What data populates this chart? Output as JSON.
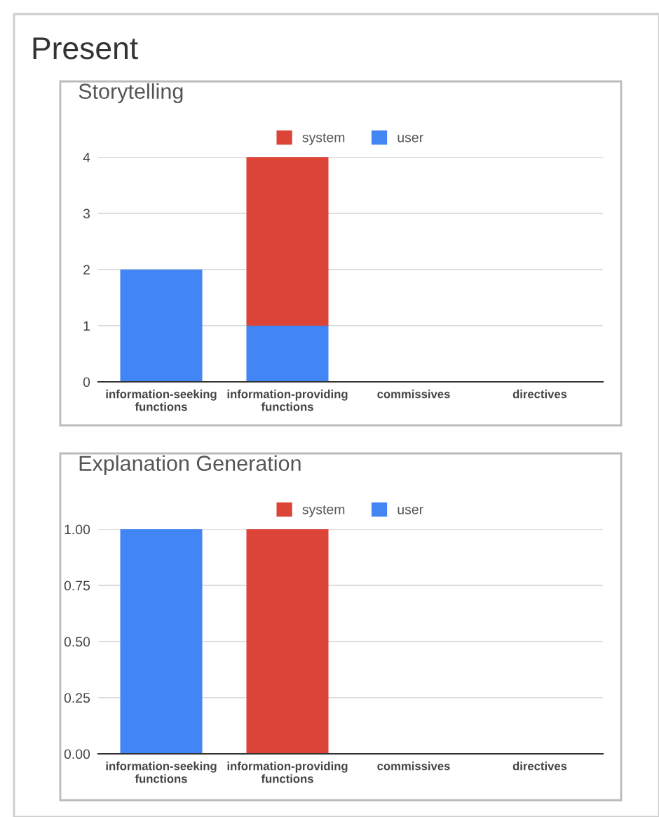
{
  "chart_data": [
    {
      "type": "bar",
      "title": "Storytelling",
      "annotations": [
        "Present"
      ],
      "categories": [
        "information-seeking functions",
        "information-providing functions",
        "commissives",
        "directives"
      ],
      "stacked": true,
      "series": [
        {
          "name": "user",
          "color": "#4285f4",
          "values": [
            2,
            1,
            0,
            0
          ]
        },
        {
          "name": "system",
          "color": "#db4437",
          "values": [
            0,
            3,
            0,
            0
          ]
        }
      ],
      "ylim": [
        0,
        4
      ],
      "yticks": [
        0,
        1,
        2,
        3,
        4
      ],
      "grid": "y",
      "legend": "top"
    },
    {
      "type": "bar",
      "title": "Explanation Generation",
      "categories": [
        "information-seeking functions",
        "information-providing functions",
        "commissives",
        "directives"
      ],
      "stacked": true,
      "series": [
        {
          "name": "user",
          "color": "#4285f4",
          "values": [
            1,
            0,
            0,
            0
          ]
        },
        {
          "name": "system",
          "color": "#db4437",
          "values": [
            0,
            1,
            0,
            0
          ]
        }
      ],
      "ylim": [
        0,
        1
      ],
      "yticks": [
        {
          "value": 0,
          "label": "0.00"
        },
        {
          "value": 0.25,
          "label": "0.25"
        },
        {
          "value": 0.5,
          "label": "0.50"
        },
        {
          "value": 0.75,
          "label": "0.75"
        },
        {
          "value": 1,
          "label": "1.00"
        }
      ],
      "grid": "y",
      "legend": "top"
    }
  ]
}
